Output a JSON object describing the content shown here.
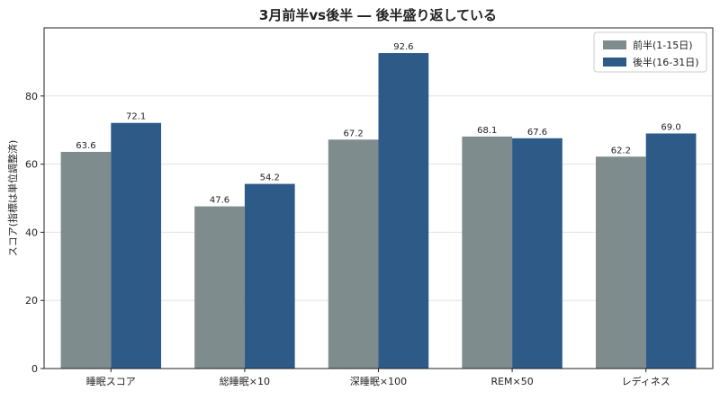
{
  "chart_data": {
    "type": "bar",
    "title": "3月前半vs後半 ― 後半盛り返している",
    "xlabel": "",
    "ylabel": "スコア(指標は単位調整済)",
    "categories": [
      "睡眠スコア",
      "総睡眠×10",
      "深睡眠×100",
      "REM×50",
      "レディネス"
    ],
    "series": [
      {
        "name": "前半(1-15日)",
        "values": [
          63.6,
          47.6,
          67.2,
          68.1,
          62.2
        ],
        "labels": [
          "63.6",
          "47.6",
          "67.2",
          "68.1",
          "62.2"
        ],
        "color": "#7f8c8d"
      },
      {
        "name": "後半(16-31日)",
        "values": [
          72.1,
          54.2,
          92.6,
          67.6,
          69.0
        ],
        "labels": [
          "72.1",
          "54.2",
          "92.6",
          "67.6",
          "69.0"
        ],
        "color": "#2e5a88"
      }
    ],
    "ylim": [
      0,
      100
    ],
    "yticks": [
      0,
      20,
      40,
      60,
      80
    ],
    "grid": true,
    "legend_position": "top-right"
  }
}
